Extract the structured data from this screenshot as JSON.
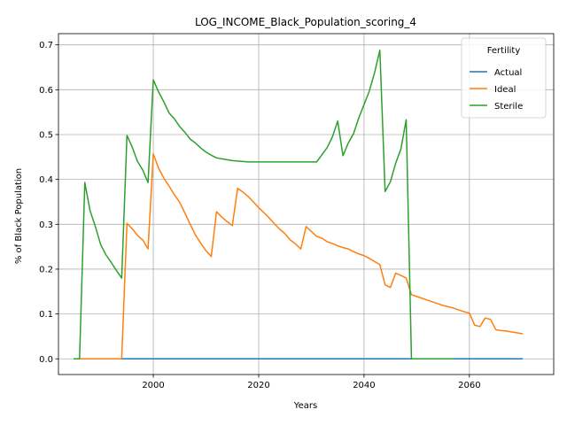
{
  "chart_data": {
    "type": "line",
    "title": "LOG_INCOME_Black_Population_scoring_4",
    "xlabel": "Years",
    "ylabel": "% of Black Population",
    "xlim": [
      1982,
      2076
    ],
    "ylim": [
      -0.035,
      0.725
    ],
    "xticks": [
      2000,
      2020,
      2040,
      2060
    ],
    "yticks": [
      0.0,
      0.1,
      0.2,
      0.3,
      0.4,
      0.5,
      0.6,
      0.7
    ],
    "ytick_labels": [
      "0.0",
      "0.1",
      "0.2",
      "0.3",
      "0.4",
      "0.5",
      "0.6",
      "0.7"
    ],
    "grid": true,
    "legend": {
      "title": "Fertility",
      "placement": "top-right"
    },
    "series": [
      {
        "name": "Actual",
        "color": "#1f77b4",
        "points": [
          [
            1985,
            0.0
          ],
          [
            2070,
            0.0
          ]
        ]
      },
      {
        "name": "Ideal",
        "color": "#ff7f0e",
        "points": [
          [
            1986,
            0.0
          ],
          [
            1994,
            0.0
          ],
          [
            1995,
            0.302
          ],
          [
            1996,
            0.29
          ],
          [
            1997,
            0.275
          ],
          [
            1998,
            0.265
          ],
          [
            1999,
            0.245
          ],
          [
            2000,
            0.457
          ],
          [
            2001,
            0.425
          ],
          [
            2002,
            0.403
          ],
          [
            2003,
            0.385
          ],
          [
            2004,
            0.366
          ],
          [
            2005,
            0.349
          ],
          [
            2006,
            0.325
          ],
          [
            2007,
            0.3
          ],
          [
            2008,
            0.276
          ],
          [
            2009,
            0.258
          ],
          [
            2010,
            0.241
          ],
          [
            2011,
            0.228
          ],
          [
            2012,
            0.328
          ],
          [
            2013,
            0.316
          ],
          [
            2014,
            0.306
          ],
          [
            2015,
            0.297
          ],
          [
            2016,
            0.38
          ],
          [
            2017,
            0.372
          ],
          [
            2018,
            0.362
          ],
          [
            2019,
            0.35
          ],
          [
            2020,
            0.337
          ],
          [
            2021,
            0.326
          ],
          [
            2022,
            0.314
          ],
          [
            2023,
            0.301
          ],
          [
            2024,
            0.289
          ],
          [
            2025,
            0.279
          ],
          [
            2026,
            0.265
          ],
          [
            2027,
            0.256
          ],
          [
            2028,
            0.245
          ],
          [
            2029,
            0.295
          ],
          [
            2030,
            0.284
          ],
          [
            2031,
            0.273
          ],
          [
            2032,
            0.269
          ],
          [
            2033,
            0.261
          ],
          [
            2034,
            0.257
          ],
          [
            2035,
            0.252
          ],
          [
            2036,
            0.248
          ],
          [
            2037,
            0.245
          ],
          [
            2038,
            0.239
          ],
          [
            2039,
            0.234
          ],
          [
            2040,
            0.23
          ],
          [
            2041,
            0.224
          ],
          [
            2042,
            0.217
          ],
          [
            2043,
            0.21
          ],
          [
            2044,
            0.165
          ],
          [
            2045,
            0.159
          ],
          [
            2046,
            0.191
          ],
          [
            2047,
            0.186
          ],
          [
            2048,
            0.18
          ],
          [
            2049,
            0.143
          ],
          [
            2050,
            0.139
          ],
          [
            2051,
            0.135
          ],
          [
            2052,
            0.131
          ],
          [
            2053,
            0.127
          ],
          [
            2054,
            0.123
          ],
          [
            2055,
            0.119
          ],
          [
            2056,
            0.116
          ],
          [
            2057,
            0.113
          ],
          [
            2058,
            0.109
          ],
          [
            2059,
            0.105
          ],
          [
            2060,
            0.102
          ],
          [
            2061,
            0.075
          ],
          [
            2062,
            0.072
          ],
          [
            2063,
            0.091
          ],
          [
            2064,
            0.088
          ],
          [
            2065,
            0.065
          ],
          [
            2066,
            0.063
          ],
          [
            2067,
            0.062
          ],
          [
            2068,
            0.06
          ],
          [
            2069,
            0.058
          ],
          [
            2070,
            0.056
          ]
        ]
      },
      {
        "name": "Sterile",
        "color": "#2ca02c",
        "points": [
          [
            1985,
            0.0
          ],
          [
            1986,
            0.0
          ],
          [
            1987,
            0.393
          ],
          [
            1988,
            0.33
          ],
          [
            1989,
            0.295
          ],
          [
            1990,
            0.255
          ],
          [
            1991,
            0.232
          ],
          [
            1992,
            0.215
          ],
          [
            1993,
            0.197
          ],
          [
            1994,
            0.18
          ],
          [
            1995,
            0.498
          ],
          [
            1996,
            0.472
          ],
          [
            1997,
            0.44
          ],
          [
            1998,
            0.421
          ],
          [
            1999,
            0.393
          ],
          [
            2000,
            0.622
          ],
          [
            2001,
            0.595
          ],
          [
            2002,
            0.573
          ],
          [
            2003,
            0.548
          ],
          [
            2004,
            0.535
          ],
          [
            2005,
            0.518
          ],
          [
            2006,
            0.505
          ],
          [
            2007,
            0.49
          ],
          [
            2008,
            0.481
          ],
          [
            2009,
            0.47
          ],
          [
            2010,
            0.461
          ],
          [
            2011,
            0.454
          ],
          [
            2012,
            0.448
          ],
          [
            2013,
            0.446
          ],
          [
            2014,
            0.444
          ],
          [
            2015,
            0.442
          ],
          [
            2016,
            0.441
          ],
          [
            2017,
            0.44
          ],
          [
            2018,
            0.439
          ],
          [
            2025,
            0.439
          ],
          [
            2031,
            0.439
          ],
          [
            2032,
            0.455
          ],
          [
            2033,
            0.471
          ],
          [
            2034,
            0.495
          ],
          [
            2035,
            0.53
          ],
          [
            2036,
            0.453
          ],
          [
            2037,
            0.481
          ],
          [
            2038,
            0.502
          ],
          [
            2039,
            0.537
          ],
          [
            2040,
            0.567
          ],
          [
            2041,
            0.597
          ],
          [
            2042,
            0.638
          ],
          [
            2043,
            0.688
          ],
          [
            2044,
            0.373
          ],
          [
            2045,
            0.395
          ],
          [
            2046,
            0.436
          ],
          [
            2047,
            0.468
          ],
          [
            2048,
            0.533
          ],
          [
            2049,
            0.0
          ],
          [
            2057,
            0.0
          ]
        ]
      }
    ]
  }
}
